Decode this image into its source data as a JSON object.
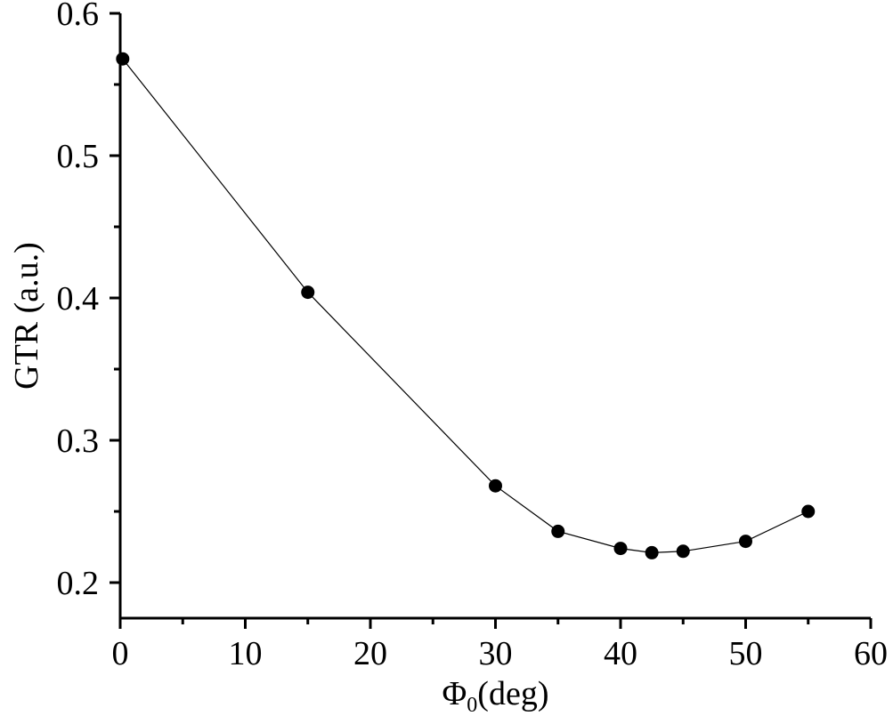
{
  "chart_data": {
    "type": "line",
    "title": "",
    "xlabel": "Φ",
    "xlabel_sub": "0",
    "xlabel_unit": "(deg)",
    "ylabel": "GTR (a.u.)",
    "xlim": [
      0,
      60
    ],
    "ylim": [
      0.175,
      0.6
    ],
    "xticks": [
      0,
      10,
      20,
      30,
      40,
      50,
      60
    ],
    "xtick_labels": [
      "0",
      "10",
      "20",
      "30",
      "40",
      "50",
      "60"
    ],
    "yticks": [
      0.2,
      0.3,
      0.4,
      0.5,
      0.6
    ],
    "ytick_labels": [
      "0.2",
      "0.3",
      "0.4",
      "0.5",
      "0.6"
    ],
    "grid": false,
    "series": [
      {
        "x": [
          0.2,
          15,
          30,
          35,
          40,
          42.5,
          45,
          50,
          55
        ],
        "y": [
          0.568,
          0.404,
          0.268,
          0.236,
          0.224,
          0.221,
          0.222,
          0.229,
          0.25
        ],
        "color": "#000000",
        "marker": "circle"
      }
    ]
  }
}
